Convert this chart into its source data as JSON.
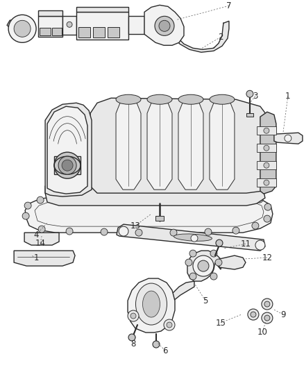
{
  "bg_color": "#ffffff",
  "line_color": "#2a2a2a",
  "label_color": "#2a2a2a",
  "fig_width": 4.38,
  "fig_height": 5.33,
  "dpi": 100,
  "lw_main": 1.0,
  "lw_thin": 0.5,
  "lw_med": 0.7,
  "gray_fill": "#e8e8e8",
  "gray_dark": "#c8c8c8",
  "gray_light": "#f2f2f2",
  "white_fill": "#ffffff"
}
